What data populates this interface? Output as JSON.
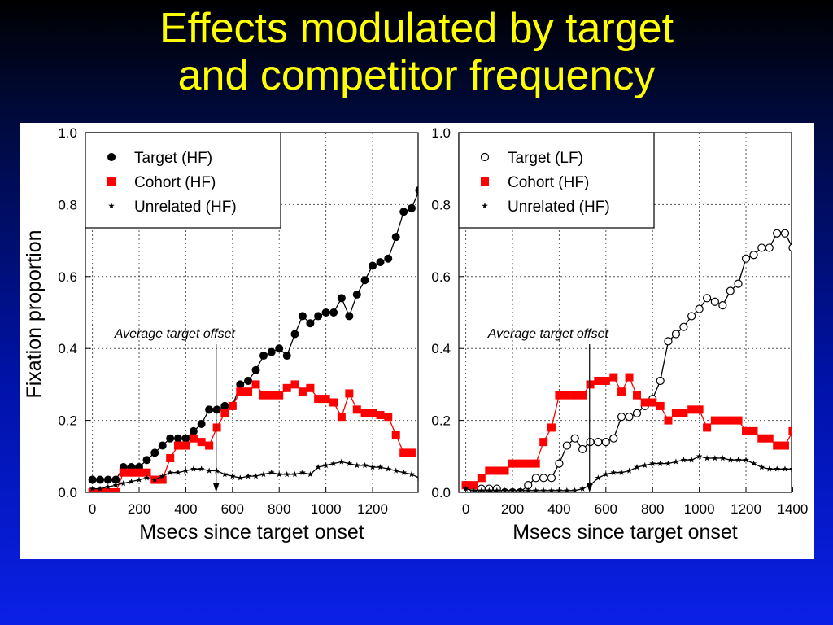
{
  "slide": {
    "title_line1": "Effects modulated by target",
    "title_line2": "and competitor frequency"
  },
  "shared": {
    "ylabel": "Fixation proportion",
    "annotation": "Average target offset",
    "annotation_x": 530
  },
  "chart_data": [
    {
      "type": "line",
      "xlabel": "Msecs since target onset",
      "ylabel": "Fixation proportion",
      "xlim": [
        -30,
        1395
      ],
      "ylim": [
        0,
        1.0
      ],
      "xticks": [
        0,
        200,
        400,
        600,
        800,
        1000,
        1200
      ],
      "yticks": [
        0.0,
        0.2,
        0.4,
        0.6,
        0.8,
        1.0
      ],
      "grid": true,
      "legend_position": "top-left",
      "series": [
        {
          "name": "Target (HF)",
          "marker": "filled-circle",
          "color": "#000000",
          "x": [
            0,
            33,
            67,
            100,
            133,
            167,
            200,
            233,
            267,
            300,
            333,
            367,
            400,
            433,
            467,
            500,
            533,
            567,
            600,
            633,
            667,
            700,
            733,
            767,
            800,
            833,
            867,
            900,
            933,
            967,
            1000,
            1033,
            1067,
            1100,
            1133,
            1167,
            1200,
            1233,
            1267,
            1300,
            1333,
            1367,
            1400
          ],
          "y": [
            0.035,
            0.035,
            0.035,
            0.035,
            0.07,
            0.07,
            0.07,
            0.09,
            0.11,
            0.13,
            0.15,
            0.15,
            0.15,
            0.17,
            0.19,
            0.23,
            0.23,
            0.24,
            0.24,
            0.3,
            0.31,
            0.34,
            0.38,
            0.39,
            0.4,
            0.38,
            0.44,
            0.49,
            0.47,
            0.49,
            0.5,
            0.5,
            0.54,
            0.49,
            0.55,
            0.59,
            0.63,
            0.64,
            0.65,
            0.71,
            0.78,
            0.79,
            0.84
          ]
        },
        {
          "name": "Cohort (HF)",
          "marker": "filled-square",
          "color": "#ff0000",
          "x": [
            0,
            33,
            67,
            100,
            133,
            167,
            200,
            233,
            267,
            300,
            333,
            367,
            400,
            433,
            467,
            500,
            533,
            567,
            600,
            633,
            667,
            700,
            733,
            767,
            800,
            833,
            867,
            900,
            933,
            967,
            1000,
            1033,
            1067,
            1100,
            1133,
            1167,
            1200,
            1233,
            1267,
            1300,
            1333,
            1367
          ],
          "y": [
            0.0,
            0.0,
            0.0,
            0.0,
            0.055,
            0.055,
            0.055,
            0.055,
            0.035,
            0.035,
            0.095,
            0.13,
            0.13,
            0.15,
            0.14,
            0.13,
            0.18,
            0.22,
            0.24,
            0.28,
            0.28,
            0.3,
            0.27,
            0.27,
            0.27,
            0.29,
            0.3,
            0.28,
            0.29,
            0.26,
            0.26,
            0.25,
            0.21,
            0.275,
            0.23,
            0.22,
            0.22,
            0.215,
            0.21,
            0.16,
            0.11,
            0.11
          ]
        },
        {
          "name": "Unrelated (HF)",
          "marker": "star",
          "color": "#000000",
          "x": [
            0,
            33,
            67,
            100,
            133,
            167,
            200,
            233,
            267,
            300,
            333,
            367,
            400,
            433,
            467,
            500,
            533,
            567,
            600,
            633,
            667,
            700,
            733,
            767,
            800,
            833,
            867,
            900,
            933,
            967,
            1000,
            1033,
            1067,
            1100,
            1133,
            1167,
            1200,
            1233,
            1267,
            1300,
            1333,
            1367,
            1400
          ],
          "y": [
            0.01,
            0.01,
            0.015,
            0.02,
            0.025,
            0.03,
            0.035,
            0.04,
            0.035,
            0.045,
            0.055,
            0.055,
            0.06,
            0.065,
            0.065,
            0.06,
            0.06,
            0.05,
            0.045,
            0.04,
            0.045,
            0.045,
            0.05,
            0.055,
            0.05,
            0.05,
            0.05,
            0.055,
            0.05,
            0.07,
            0.075,
            0.08,
            0.085,
            0.08,
            0.075,
            0.075,
            0.07,
            0.07,
            0.065,
            0.06,
            0.055,
            0.05,
            0.04
          ]
        }
      ]
    },
    {
      "type": "line",
      "xlabel": "Msecs since target onset",
      "ylabel": "",
      "xlim": [
        -30,
        1395
      ],
      "ylim": [
        0,
        1.0
      ],
      "xticks": [
        0,
        200,
        400,
        600,
        800,
        1000,
        1200,
        1400
      ],
      "yticks": [
        0.0,
        0.2,
        0.4,
        0.6,
        0.8,
        1.0
      ],
      "grid": true,
      "legend_position": "top-left",
      "series": [
        {
          "name": "Target (LF)",
          "marker": "open-circle",
          "color": "#000000",
          "x": [
            0,
            33,
            67,
            100,
            133,
            167,
            200,
            233,
            267,
            300,
            333,
            367,
            400,
            433,
            467,
            500,
            533,
            567,
            600,
            633,
            667,
            700,
            733,
            767,
            800,
            833,
            867,
            900,
            933,
            967,
            1000,
            1033,
            1067,
            1100,
            1133,
            1167,
            1200,
            1233,
            1267,
            1300,
            1333,
            1367,
            1400
          ],
          "y": [
            0.02,
            0.01,
            0.01,
            0.01,
            0.01,
            0.0,
            0.0,
            0.0,
            0.02,
            0.04,
            0.04,
            0.04,
            0.08,
            0.13,
            0.15,
            0.12,
            0.14,
            0.14,
            0.14,
            0.15,
            0.21,
            0.21,
            0.22,
            0.24,
            0.26,
            0.31,
            0.42,
            0.44,
            0.46,
            0.49,
            0.51,
            0.54,
            0.53,
            0.52,
            0.56,
            0.58,
            0.65,
            0.66,
            0.68,
            0.68,
            0.72,
            0.72,
            0.68
          ]
        },
        {
          "name": "Cohort (HF)",
          "marker": "filled-square",
          "color": "#ff0000",
          "x": [
            0,
            33,
            67,
            100,
            133,
            167,
            200,
            233,
            267,
            300,
            333,
            367,
            400,
            433,
            467,
            500,
            533,
            567,
            600,
            633,
            667,
            700,
            733,
            767,
            800,
            833,
            867,
            900,
            933,
            967,
            1000,
            1033,
            1067,
            1100,
            1133,
            1167,
            1200,
            1233,
            1267,
            1300,
            1333,
            1367,
            1400
          ],
          "y": [
            0.02,
            0.02,
            0.04,
            0.06,
            0.06,
            0.06,
            0.08,
            0.08,
            0.08,
            0.08,
            0.14,
            0.18,
            0.27,
            0.27,
            0.27,
            0.27,
            0.3,
            0.31,
            0.31,
            0.32,
            0.28,
            0.32,
            0.27,
            0.25,
            0.25,
            0.24,
            0.2,
            0.22,
            0.22,
            0.23,
            0.23,
            0.18,
            0.2,
            0.2,
            0.2,
            0.2,
            0.17,
            0.17,
            0.15,
            0.15,
            0.13,
            0.13,
            0.17
          ]
        },
        {
          "name": "Unrelated (HF)",
          "marker": "star",
          "color": "#000000",
          "x": [
            0,
            33,
            67,
            100,
            133,
            167,
            200,
            233,
            267,
            300,
            333,
            367,
            400,
            433,
            467,
            500,
            533,
            567,
            600,
            633,
            667,
            700,
            733,
            767,
            800,
            833,
            867,
            900,
            933,
            967,
            1000,
            1033,
            1067,
            1100,
            1133,
            1167,
            1200,
            1233,
            1267,
            1300,
            1333,
            1367,
            1400
          ],
          "y": [
            0.01,
            0.005,
            0.005,
            0.005,
            0.005,
            0.005,
            0.005,
            0.005,
            0.005,
            0.005,
            0.005,
            0.005,
            0.005,
            0.005,
            0.005,
            0.01,
            0.02,
            0.04,
            0.05,
            0.055,
            0.055,
            0.06,
            0.07,
            0.075,
            0.08,
            0.08,
            0.08,
            0.085,
            0.09,
            0.09,
            0.1,
            0.095,
            0.095,
            0.095,
            0.09,
            0.09,
            0.09,
            0.08,
            0.07,
            0.065,
            0.065,
            0.065,
            0.065
          ]
        }
      ]
    }
  ]
}
